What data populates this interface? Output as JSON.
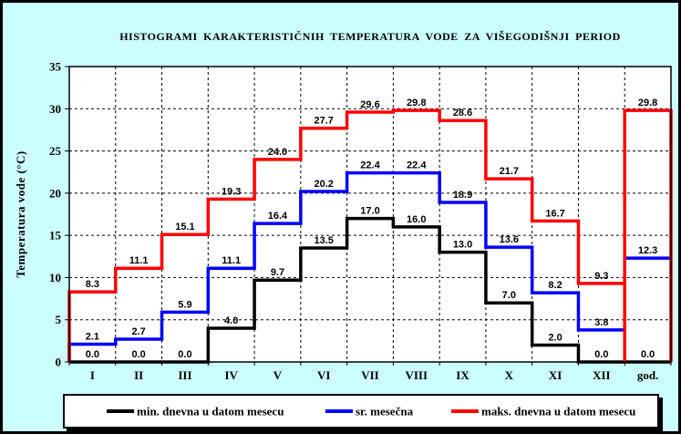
{
  "chart_data": {
    "type": "step",
    "title": "HISTOGRAMI KARAKTERISTIČNIH TEMPERATURA VODE ZA VIŠEGODIŠNJI PERIOD",
    "ylabel": "Temperatura vode (°C)",
    "ylim": [
      0,
      35
    ],
    "ytick_step": 5,
    "yticks": [
      0,
      5,
      10,
      15,
      20,
      25,
      30,
      35
    ],
    "grid": true,
    "legend_position": "bottom",
    "background": "#CCFFFF",
    "plot_background": "#FFFFFF",
    "categories": [
      "I",
      "II",
      "III",
      "IV",
      "V",
      "VI",
      "VII",
      "VIII",
      "IX",
      "X",
      "XI",
      "XII",
      "god."
    ],
    "series": [
      {
        "name": "min. dnevna u datom mesecu",
        "color": "#000000",
        "annual_style": "line",
        "values": [
          0.0,
          0.0,
          0.0,
          4.0,
          9.7,
          13.5,
          17.0,
          16.0,
          13.0,
          7.0,
          2.0,
          0.0,
          0.0
        ]
      },
      {
        "name": "sr. mesečna",
        "color": "#0000FF",
        "annual_style": "line",
        "values": [
          2.1,
          2.7,
          5.9,
          11.1,
          16.4,
          20.2,
          22.4,
          22.4,
          18.9,
          13.6,
          8.2,
          3.8,
          12.3
        ]
      },
      {
        "name": "maks. dnevna u datom mesecu",
        "color": "#FF0000",
        "annual_style": "box",
        "values": [
          8.3,
          11.1,
          15.1,
          19.3,
          24.0,
          27.7,
          29.6,
          29.8,
          28.6,
          21.7,
          16.7,
          9.3,
          29.8
        ]
      }
    ]
  }
}
